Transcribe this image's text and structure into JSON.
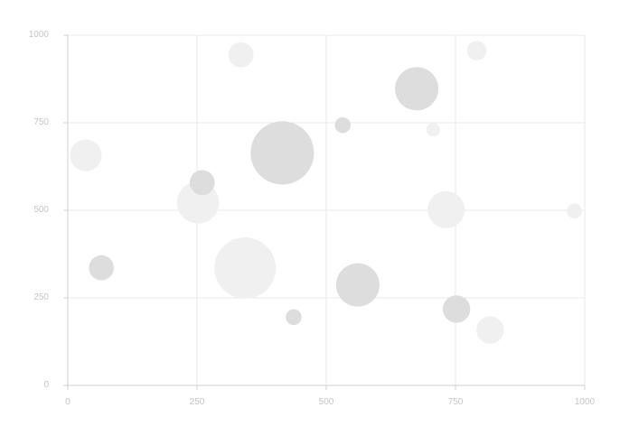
{
  "chart_data": {
    "type": "scatter",
    "title": "",
    "xlabel": "",
    "ylabel": "",
    "xlim": [
      0,
      1000
    ],
    "ylim": [
      0,
      1000
    ],
    "x_ticks": [
      0,
      250,
      500,
      750,
      1000
    ],
    "y_ticks": [
      0,
      250,
      500,
      750,
      1000
    ],
    "x_tick_labels": [
      "0",
      "250",
      "500",
      "750",
      "1000"
    ],
    "y_tick_labels": [
      "0",
      "250",
      "500",
      "750",
      "1000"
    ],
    "grid": {
      "x": true,
      "y": true
    },
    "legend": "none",
    "colors": {
      "light_bubble": "#f0f0f0",
      "dark_bubble": "#dddddd",
      "grid": "#e8e8e8",
      "axis": "#d0d0d0",
      "tick_label": "#c4c4c4"
    },
    "points": [
      {
        "x": 35,
        "y": 657,
        "size": 8,
        "shade": "light"
      },
      {
        "x": 65,
        "y": 336,
        "size": 5,
        "shade": "dark"
      },
      {
        "x": 252,
        "y": 522,
        "size": 14,
        "shade": "light"
      },
      {
        "x": 260,
        "y": 579,
        "size": 5,
        "shade": "dark"
      },
      {
        "x": 335,
        "y": 944,
        "size": 5,
        "shade": "light"
      },
      {
        "x": 343,
        "y": 335,
        "size": 30,
        "shade": "light"
      },
      {
        "x": 415,
        "y": 664,
        "size": 32,
        "shade": "dark"
      },
      {
        "x": 437,
        "y": 195,
        "size": 2,
        "shade": "dark"
      },
      {
        "x": 532,
        "y": 743,
        "size": 2,
        "shade": "dark"
      },
      {
        "x": 561,
        "y": 287,
        "size": 15,
        "shade": "dark"
      },
      {
        "x": 675,
        "y": 847,
        "size": 15,
        "shade": "dark"
      },
      {
        "x": 707,
        "y": 730,
        "size": 1.5,
        "shade": "light"
      },
      {
        "x": 732,
        "y": 502,
        "size": 11,
        "shade": "light"
      },
      {
        "x": 752,
        "y": 218,
        "size": 6,
        "shade": "dark"
      },
      {
        "x": 791,
        "y": 956,
        "size": 3,
        "shade": "light"
      },
      {
        "x": 817,
        "y": 158,
        "size": 6,
        "shade": "light"
      },
      {
        "x": 980,
        "y": 498,
        "size": 1.8,
        "shade": "light"
      }
    ]
  }
}
